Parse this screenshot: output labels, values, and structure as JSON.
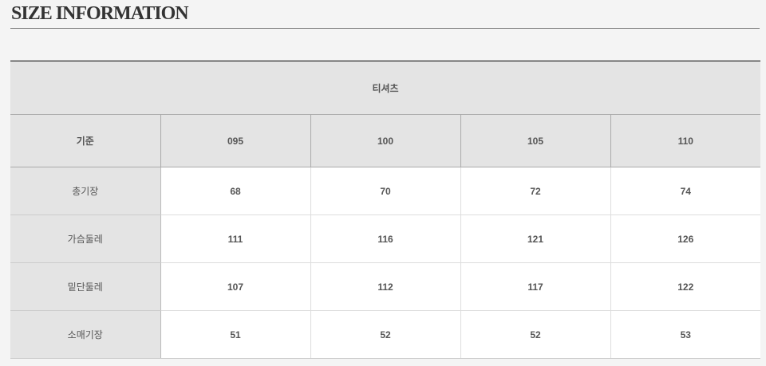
{
  "title": "SIZE INFORMATION",
  "table": {
    "caption": "티셔츠",
    "headers": [
      "기준",
      "095",
      "100",
      "105",
      "110"
    ],
    "rows": [
      {
        "label": "총기장",
        "values": [
          "68",
          "70",
          "72",
          "74"
        ]
      },
      {
        "label": "가슴둘레",
        "values": [
          "111",
          "116",
          "121",
          "126"
        ]
      },
      {
        "label": "밑단둘레",
        "values": [
          "107",
          "112",
          "117",
          "122"
        ]
      },
      {
        "label": "소매기장",
        "values": [
          "51",
          "52",
          "52",
          "53"
        ]
      }
    ]
  }
}
